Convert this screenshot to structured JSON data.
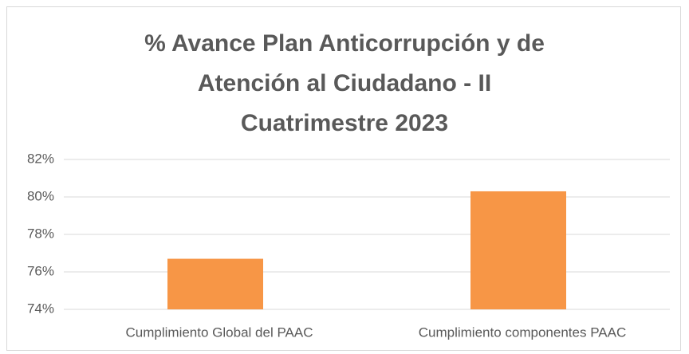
{
  "chart_data": {
    "type": "bar",
    "title": "% Avance Plan Anticorrupción y de Atención al Ciudadano - II Cuatrimestre 2023",
    "categories": [
      "Cumplimiento Global del PAAC",
      "Cumplimiento componentes PAAC"
    ],
    "values": [
      76.7,
      80.3
    ],
    "color": "#f79646",
    "ylim": [
      74,
      82
    ],
    "yticks": [
      {
        "value": 74,
        "label": "74%"
      },
      {
        "value": 76,
        "label": "76%"
      },
      {
        "value": 78,
        "label": "78%"
      },
      {
        "value": 80,
        "label": "80%"
      },
      {
        "value": 82,
        "label": "82%"
      }
    ],
    "grid": true
  }
}
